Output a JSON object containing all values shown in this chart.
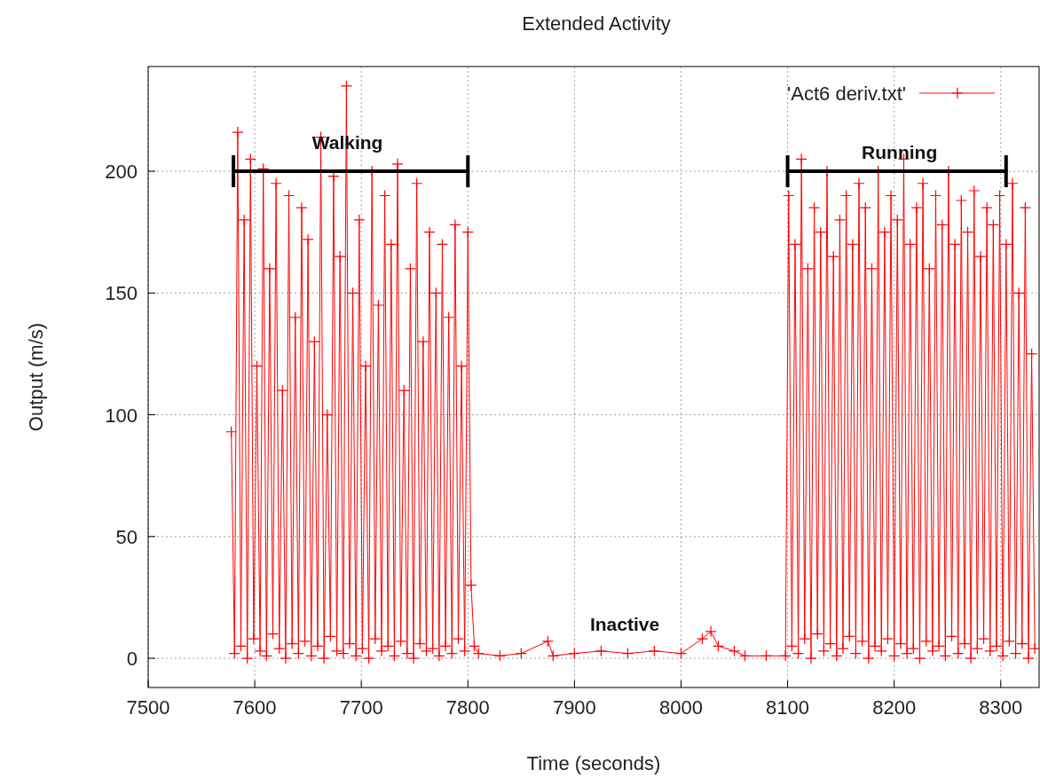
{
  "chart_data": {
    "type": "line",
    "title": "Extended Activity",
    "xlabel": "Time (seconds)",
    "ylabel": "Output (m/s)",
    "xlim": [
      7500,
      8336
    ],
    "ylim": [
      -12,
      243
    ],
    "xticks": [
      7500,
      7600,
      7700,
      7800,
      7900,
      8000,
      8100,
      8200,
      8300
    ],
    "yticks": [
      0,
      50,
      100,
      150,
      200
    ],
    "grid": true,
    "legend": "top right",
    "marker": "cross",
    "line_style": "solid",
    "annotations": [
      {
        "text": "Walking",
        "x": 7687,
        "y": 209
      },
      {
        "text": "Running",
        "x": 8205,
        "y": 205
      },
      "Inactive"
    ],
    "series": [
      {
        "name": "'Act6 deriv.txt'",
        "color": "#ff0000",
        "x": [
          7578,
          7581,
          7584,
          7587,
          7590,
          7593,
          7596,
          7599,
          7602,
          7605,
          7608,
          7611,
          7614,
          7617,
          7620,
          7623,
          7626,
          7629,
          7632,
          7635,
          7638,
          7641,
          7644,
          7647,
          7650,
          7653,
          7656,
          7659,
          7662,
          7665,
          7668,
          7671,
          7674,
          7677,
          7680,
          7683,
          7686,
          7689,
          7692,
          7695,
          7698,
          7701,
          7704,
          7707,
          7710,
          7713,
          7716,
          7719,
          7722,
          7725,
          7728,
          7731,
          7734,
          7737,
          7740,
          7743,
          7746,
          7749,
          7752,
          7755,
          7758,
          7761,
          7764,
          7767,
          7770,
          7773,
          7776,
          7779,
          7782,
          7785,
          7788,
          7791,
          7794,
          7797,
          7800,
          7803,
          7806,
          7810,
          7830,
          7850,
          7875,
          7880,
          7900,
          7925,
          7950,
          7975,
          8000,
          8020,
          8028,
          8035,
          8050,
          8060,
          8080,
          8098,
          8101,
          8104,
          8107,
          8110,
          8113,
          8116,
          8119,
          8122,
          8125,
          8128,
          8131,
          8134,
          8137,
          8140,
          8143,
          8146,
          8149,
          8152,
          8155,
          8158,
          8161,
          8164,
          8167,
          8170,
          8173,
          8176,
          8179,
          8182,
          8185,
          8188,
          8191,
          8194,
          8197,
          8200,
          8203,
          8206,
          8209,
          8212,
          8215,
          8218,
          8221,
          8224,
          8227,
          8230,
          8233,
          8236,
          8239,
          8242,
          8245,
          8248,
          8251,
          8254,
          8257,
          8260,
          8263,
          8266,
          8269,
          8272,
          8275,
          8278,
          8281,
          8284,
          8287,
          8290,
          8293,
          8296,
          8299,
          8302,
          8305,
          8308,
          8311,
          8314,
          8317,
          8320,
          8323,
          8326,
          8329,
          8332
        ],
        "values": [
          93,
          2,
          216,
          5,
          180,
          0,
          205,
          8,
          120,
          3,
          201,
          1,
          160,
          10,
          195,
          4,
          110,
          0,
          190,
          6,
          140,
          2,
          185,
          7,
          172,
          1,
          130,
          5,
          214,
          0,
          100,
          9,
          198,
          3,
          165,
          2,
          235,
          6,
          150,
          1,
          180,
          4,
          120,
          0,
          200,
          8,
          145,
          3,
          190,
          5,
          170,
          1,
          203,
          7,
          110,
          2,
          160,
          0,
          195,
          6,
          130,
          3,
          175,
          4,
          150,
          1,
          170,
          5,
          140,
          2,
          178,
          8,
          120,
          3,
          175,
          30,
          5,
          2,
          1,
          2,
          7,
          1,
          2,
          3,
          2,
          3,
          2,
          8,
          11,
          5,
          3,
          1,
          1,
          1,
          190,
          5,
          170,
          2,
          205,
          8,
          160,
          0,
          185,
          10,
          175,
          3,
          200,
          6,
          165,
          1,
          180,
          4,
          190,
          9,
          170,
          2,
          195,
          7,
          185,
          0,
          160,
          5,
          200,
          3,
          175,
          8,
          190,
          1,
          180,
          6,
          205,
          2,
          170,
          4,
          185,
          0,
          195,
          7,
          160,
          3,
          190,
          5,
          178,
          1,
          200,
          9,
          170,
          2,
          188,
          6,
          175,
          0,
          192,
          4,
          165,
          8,
          185,
          3,
          178,
          5,
          190,
          1,
          170,
          7,
          195,
          2,
          150,
          6,
          185,
          0,
          125,
          4
        ]
      },
      {
        "type": "line",
        "color": "#000000",
        "marker": "none",
        "x": [
          7580,
          7800
        ],
        "values": [
          200,
          200
        ]
      },
      {
        "type": "line",
        "color": "#000000",
        "marker": "none",
        "x": [
          8100,
          8305
        ],
        "values": [
          200,
          200
        ]
      }
    ]
  }
}
